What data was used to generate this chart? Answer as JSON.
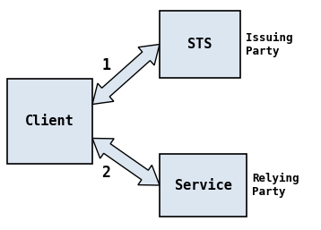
{
  "background_color": "#ffffff",
  "box_fill": "#dce6f1",
  "box_edge": "#000000",
  "arrow_fill": "#dce6f1",
  "arrow_edge": "#000000",
  "issuing_label": "Issuing\nParty",
  "relying_label": "Relying\nParty",
  "label_1": "1",
  "label_2": "2",
  "figsize": [
    3.58,
    2.57
  ],
  "dpi": 100
}
